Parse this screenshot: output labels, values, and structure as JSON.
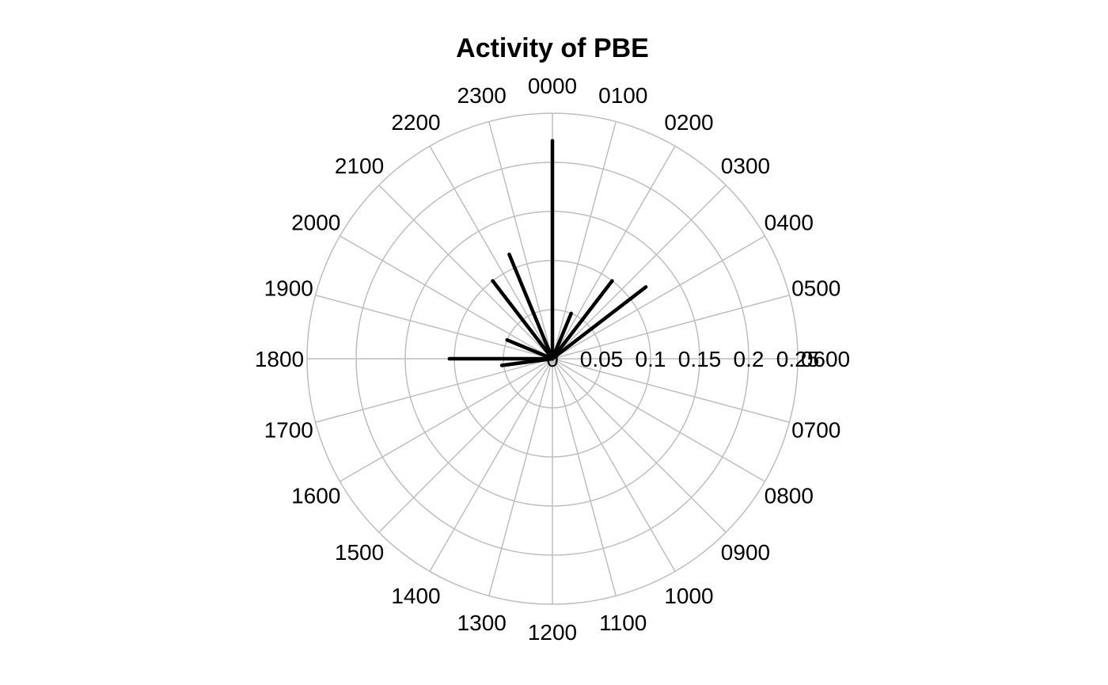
{
  "chart_data": {
    "type": "polar-line",
    "title": "Activity of PBE",
    "hour_labels": [
      "0000",
      "0100",
      "0200",
      "0300",
      "0400",
      "0500",
      "0600",
      "0700",
      "0800",
      "0900",
      "1000",
      "1100",
      "1200",
      "1300",
      "1400",
      "1500",
      "1600",
      "1700",
      "1800",
      "1900",
      "2000",
      "2100",
      "2200",
      "2300"
    ],
    "radial_ticks": [
      0,
      0.05,
      0.1,
      0.15,
      0.2,
      0.25
    ],
    "radial_tick_labels": [
      "0",
      "0.05",
      "0.1",
      "0.15",
      "0.2",
      "0.25"
    ],
    "rlim": [
      0,
      0.25
    ],
    "grid": true,
    "series": [
      {
        "values": [
          0.222,
          0,
          0,
          0,
          0.044,
          0.12,
          0.1,
          0,
          0,
          0,
          0,
          0,
          0,
          0,
          0,
          0,
          0,
          0.052,
          0.105,
          0,
          0.05,
          0,
          0,
          0.1,
          0.115,
          0
        ]
      }
    ],
    "segments": [
      {
        "hour": 0.0,
        "value": 0.222
      },
      {
        "hour": 1.5,
        "value": 0.05
      },
      {
        "hour": 2.5,
        "value": 0.1
      },
      {
        "hour": 3.5,
        "value": 0.12
      },
      {
        "hour": 17.5,
        "value": 0.052
      },
      {
        "hour": 18.0,
        "value": 0.105
      },
      {
        "hour": 19.5,
        "value": 0.05
      },
      {
        "hour": 21.5,
        "value": 0.1
      },
      {
        "hour": 22.5,
        "value": 0.115
      }
    ],
    "line_color": "#000000",
    "grid_color": "#bebebe"
  }
}
